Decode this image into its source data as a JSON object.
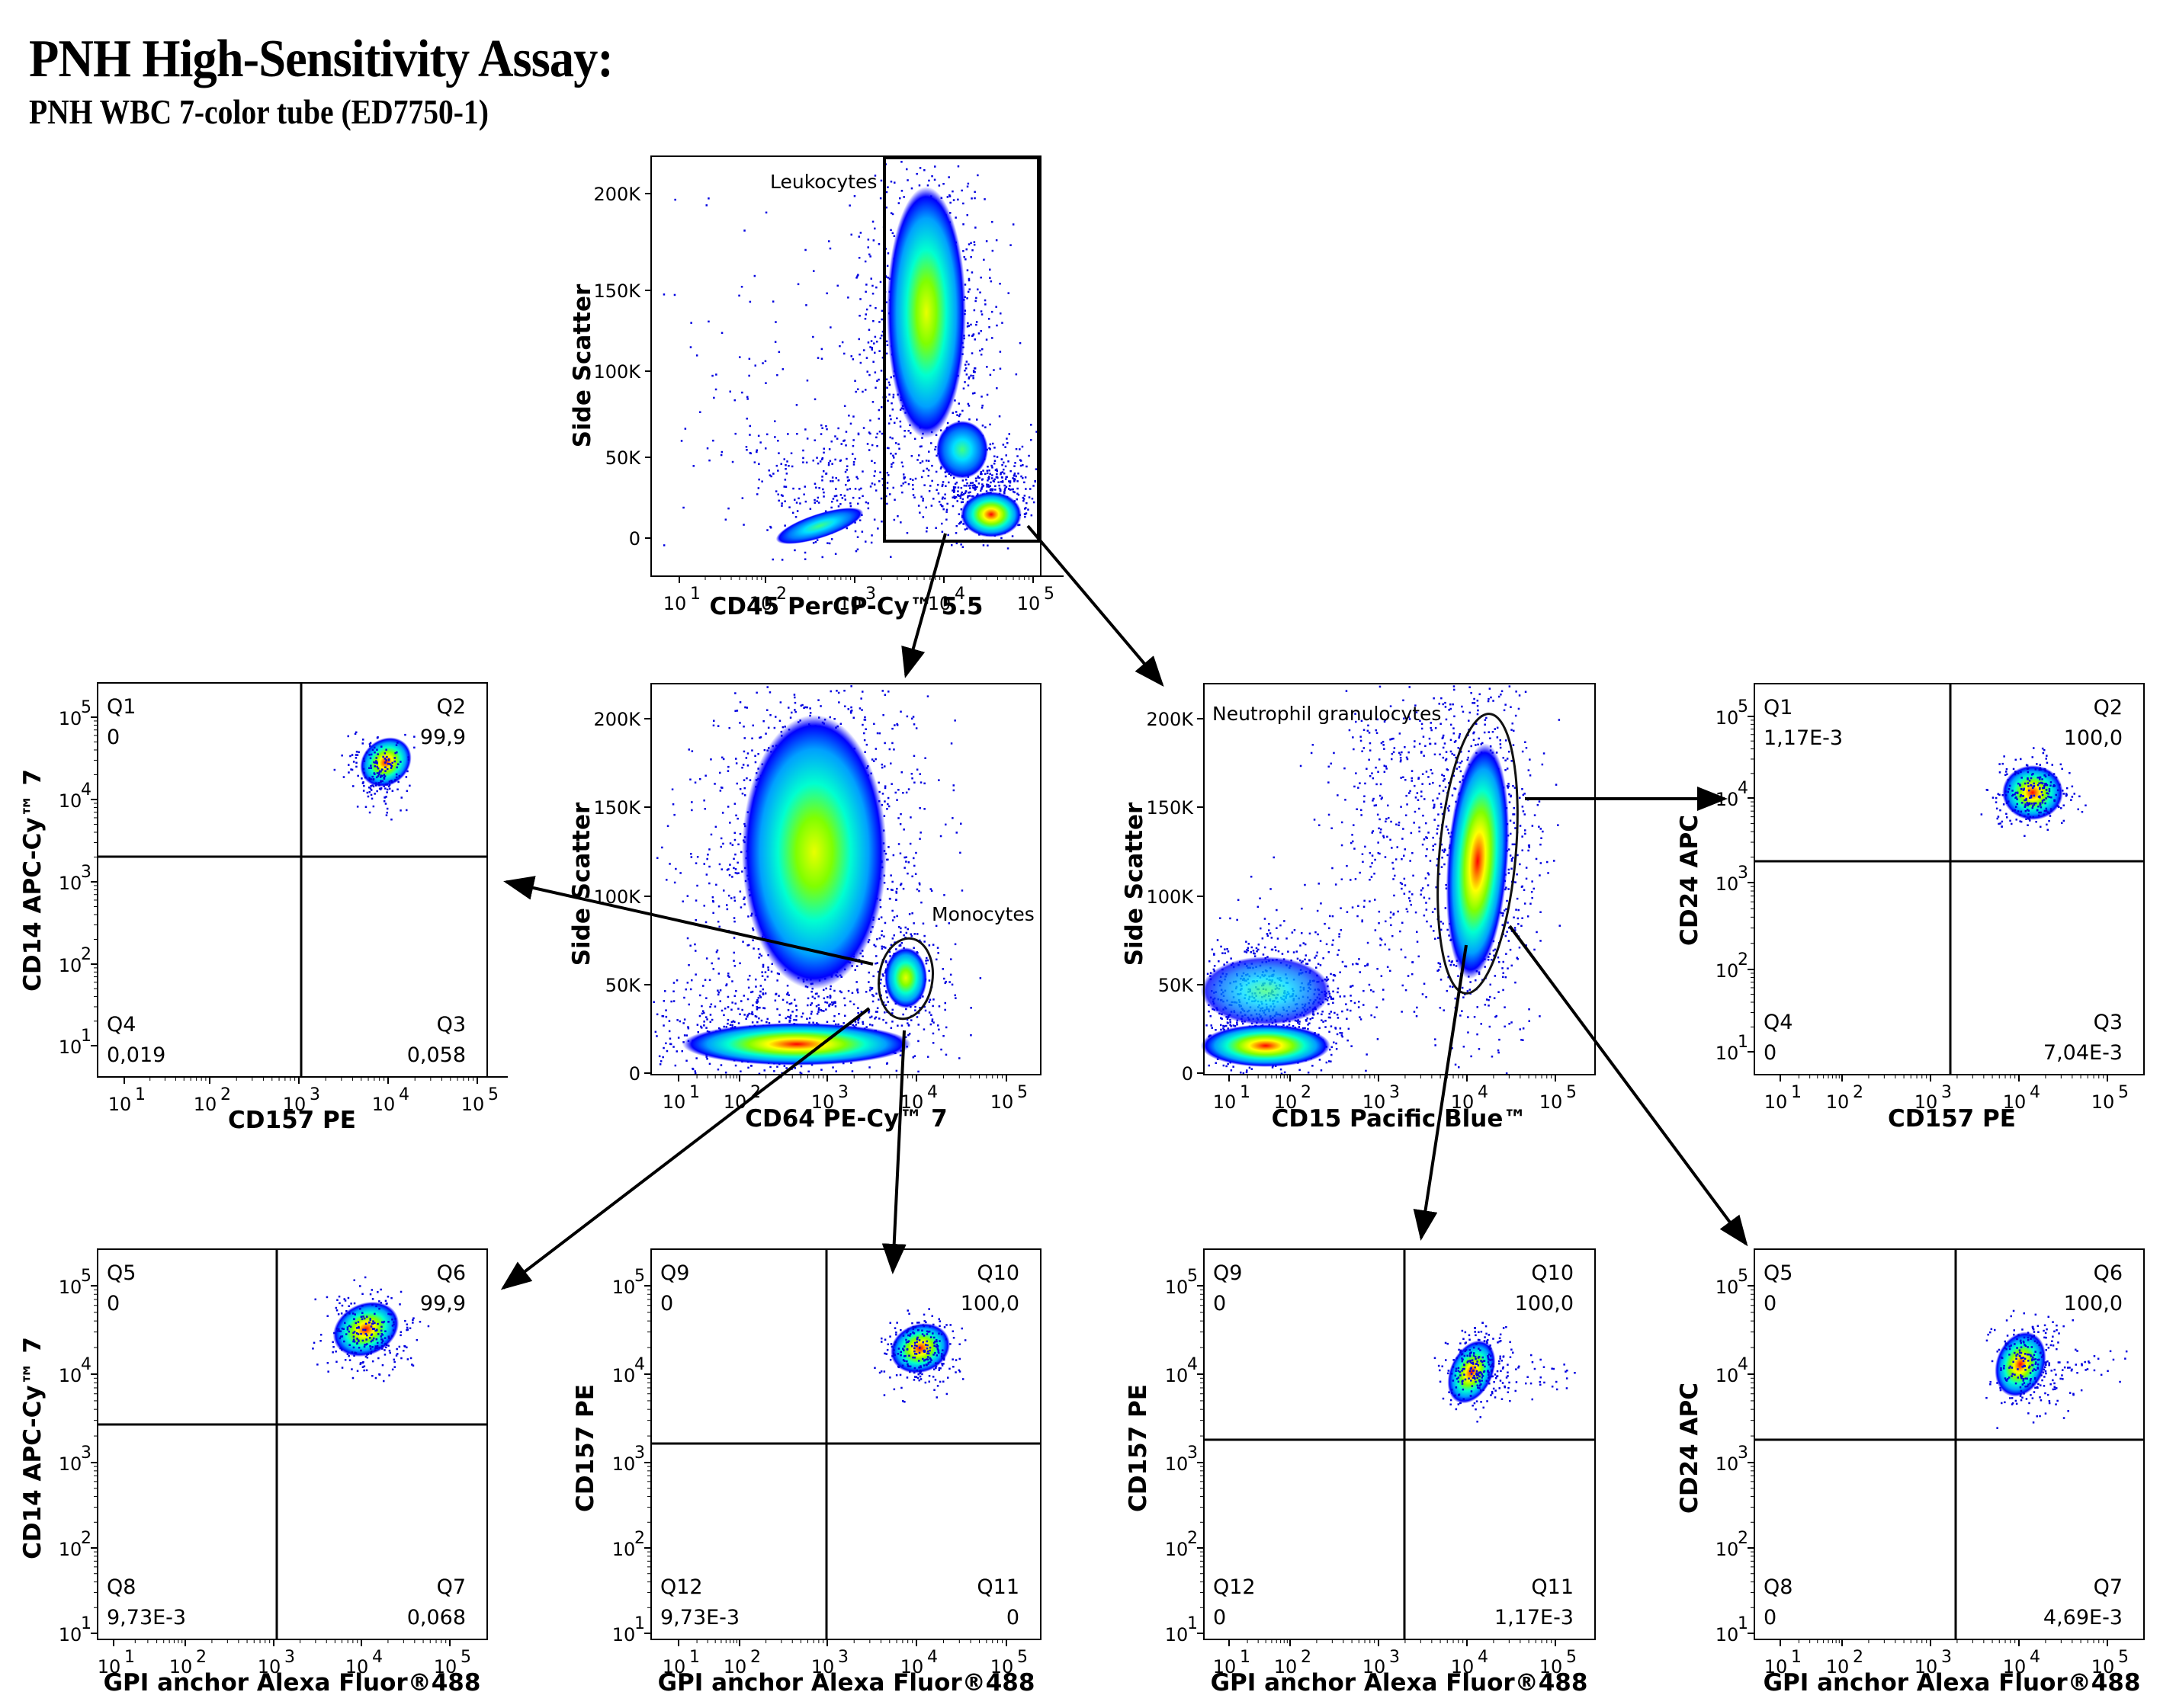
{
  "header": {
    "title": "PNH High-Sensitivity Assay:",
    "subtitle": "PNH WBC 7-color tube (ED7750-1)"
  },
  "colors": {
    "jet": [
      "#0000ff",
      "#00a0ff",
      "#00ffd0",
      "#80ff00",
      "#ffff00",
      "#ff8000",
      "#ff0000"
    ],
    "sparse_dot": "#0000e0",
    "gate_line": "#000000"
  },
  "chart_data": [
    {
      "id": "leukocytes",
      "type": "scatter",
      "title": "",
      "xlabel": "CD45 PerCP-Cy™ 5.5",
      "ylabel": "Side Scatter",
      "x_scale": "log",
      "y_scale": "linear",
      "x_ticks": [
        "10^1",
        "10^2",
        "10^3",
        "10^4",
        "10^5"
      ],
      "y_ticks": [
        "0",
        "50K",
        "100K",
        "150K",
        "200K"
      ],
      "ylim": [
        0,
        220000
      ],
      "gates": [
        {
          "name": "Leukocytes",
          "shape": "rectangle",
          "x_range": [
            3500,
            200000
          ],
          "y_range": [
            0,
            218000
          ]
        }
      ],
      "populations": [
        {
          "name": "granulocytes",
          "x_center": 15000,
          "y_center": 130000,
          "density": "high"
        },
        {
          "name": "monocytes",
          "x_center": 30000,
          "y_center": 52000,
          "density": "medium"
        },
        {
          "name": "lymphocytes",
          "x_center": 70000,
          "y_center": 12000,
          "density": "very high"
        },
        {
          "name": "debris/RBC",
          "x_center": 700,
          "y_center": 10000,
          "density": "medium"
        }
      ]
    },
    {
      "id": "monocytes-gate",
      "type": "scatter",
      "xlabel": "CD64 PE-Cy™ 7",
      "ylabel": "Side Scatter",
      "x_scale": "log",
      "y_scale": "linear",
      "x_ticks": [
        "10^1",
        "10^2",
        "10^3",
        "10^4",
        "10^5"
      ],
      "y_ticks": [
        "0",
        "50K",
        "100K",
        "150K",
        "200K"
      ],
      "ylim": [
        0,
        220000
      ],
      "gates": [
        {
          "name": "Monocytes",
          "shape": "ellipse",
          "x_center": 6500,
          "y_center": 52000
        }
      ],
      "populations": [
        {
          "name": "granulocytes",
          "x_center": 700,
          "y_center": 130000,
          "density": "high"
        },
        {
          "name": "lymphocytes",
          "x_center": 1000,
          "y_center": 12000,
          "density": "high"
        },
        {
          "name": "monocytes",
          "x_center": 6500,
          "y_center": 52000,
          "density": "medium"
        }
      ]
    },
    {
      "id": "neutrophil-gate",
      "type": "scatter",
      "xlabel": "CD15 Pacific Blue™",
      "ylabel": "Side Scatter",
      "x_scale": "log",
      "y_scale": "linear",
      "x_ticks": [
        "10^1",
        "10^2",
        "10^3",
        "10^4",
        "10^5"
      ],
      "y_ticks": [
        "0",
        "50K",
        "100K",
        "150K",
        "200K"
      ],
      "ylim": [
        0,
        220000
      ],
      "gates": [
        {
          "name": "Neutrophil granulocytes",
          "shape": "ellipse",
          "x_center": 11000,
          "y_center": 130000
        }
      ],
      "populations": [
        {
          "name": "neutrophils",
          "x_center": 11000,
          "y_center": 125000,
          "density": "very high"
        },
        {
          "name": "lymphocytes",
          "x_center": 30,
          "y_center": 12000,
          "density": "high"
        },
        {
          "name": "monocytes",
          "x_center": 40,
          "y_center": 50000,
          "density": "medium"
        }
      ]
    },
    {
      "id": "mono-cd14-cd157",
      "type": "scatter",
      "xlabel": "CD157 PE",
      "ylabel": "CD14 APC-Cy™ 7",
      "x_scale": "log",
      "y_scale": "log",
      "x_ticks": [
        "10^1",
        "10^2",
        "10^3",
        "10^4",
        "10^5"
      ],
      "y_ticks": [
        "10^1",
        "10^2",
        "10^3",
        "10^4",
        "10^5"
      ],
      "quadrants": [
        {
          "name": "Q1",
          "value": "0",
          "pos": "top-left"
        },
        {
          "name": "Q2",
          "value": "99,9",
          "pos": "top-right"
        },
        {
          "name": "Q3",
          "value": "0,058",
          "pos": "bottom-right"
        },
        {
          "name": "Q4",
          "value": "0,019",
          "pos": "bottom-left"
        }
      ],
      "cluster": {
        "x_center": 18000,
        "y_center": 35000
      }
    },
    {
      "id": "neut-cd24-cd157",
      "type": "scatter",
      "xlabel": "CD157 PE",
      "ylabel": "CD24 APC",
      "x_scale": "log",
      "y_scale": "log",
      "x_ticks": [
        "10^1",
        "10^2",
        "10^3",
        "10^4",
        "10^5"
      ],
      "y_ticks": [
        "10^1",
        "10^2",
        "10^3",
        "10^4",
        "10^5"
      ],
      "quadrants": [
        {
          "name": "Q1",
          "value": "1,17E-3",
          "pos": "top-left"
        },
        {
          "name": "Q2",
          "value": "100,0",
          "pos": "top-right"
        },
        {
          "name": "Q3",
          "value": "7,04E-3",
          "pos": "bottom-right"
        },
        {
          "name": "Q4",
          "value": "0",
          "pos": "bottom-left"
        }
      ],
      "cluster": {
        "x_center": 14000,
        "y_center": 17000
      }
    },
    {
      "id": "mono-cd14-gpi",
      "type": "scatter",
      "xlabel": "GPI anchor Alexa Fluor®488",
      "ylabel": "CD14 APC-Cy™ 7",
      "x_scale": "log",
      "y_scale": "log",
      "x_ticks": [
        "10^1",
        "10^2",
        "10^3",
        "10^4",
        "10^5"
      ],
      "y_ticks": [
        "10^1",
        "10^2",
        "10^3",
        "10^4",
        "10^5"
      ],
      "quadrants": [
        {
          "name": "Q5",
          "value": "0",
          "pos": "top-left"
        },
        {
          "name": "Q6",
          "value": "99,9",
          "pos": "top-right"
        },
        {
          "name": "Q7",
          "value": "0,068",
          "pos": "bottom-right"
        },
        {
          "name": "Q8",
          "value": "9,73E-3",
          "pos": "bottom-left"
        }
      ],
      "cluster": {
        "x_center": 10000,
        "y_center": 35000
      }
    },
    {
      "id": "mono-cd157-gpi",
      "type": "scatter",
      "xlabel": "GPI anchor Alexa Fluor®488",
      "ylabel": "CD157 PE",
      "x_scale": "log",
      "y_scale": "log",
      "x_ticks": [
        "10^1",
        "10^2",
        "10^3",
        "10^4",
        "10^5"
      ],
      "y_ticks": [
        "10^1",
        "10^2",
        "10^3",
        "10^4",
        "10^5"
      ],
      "quadrants": [
        {
          "name": "Q9",
          "value": "0",
          "pos": "top-left"
        },
        {
          "name": "Q10",
          "value": "100,0",
          "pos": "top-right"
        },
        {
          "name": "Q11",
          "value": "0",
          "pos": "bottom-right"
        },
        {
          "name": "Q12",
          "value": "9,73E-3",
          "pos": "bottom-left"
        }
      ],
      "cluster": {
        "x_center": 10000,
        "y_center": 20000
      }
    },
    {
      "id": "neut-cd157-gpi",
      "type": "scatter",
      "xlabel": "GPI anchor Alexa Fluor®488",
      "ylabel": "CD157 PE",
      "x_scale": "log",
      "y_scale": "log",
      "x_ticks": [
        "10^1",
        "10^2",
        "10^3",
        "10^4",
        "10^5"
      ],
      "y_ticks": [
        "10^1",
        "10^2",
        "10^3",
        "10^4",
        "10^5"
      ],
      "quadrants": [
        {
          "name": "Q9",
          "value": "0",
          "pos": "top-left"
        },
        {
          "name": "Q10",
          "value": "100,0",
          "pos": "top-right"
        },
        {
          "name": "Q11",
          "value": "1,17E-3",
          "pos": "bottom-right"
        },
        {
          "name": "Q12",
          "value": "0",
          "pos": "bottom-left"
        }
      ],
      "cluster": {
        "x_center": 8000,
        "y_center": 14000
      }
    },
    {
      "id": "neut-cd24-gpi",
      "type": "scatter",
      "xlabel": "GPI anchor Alexa Fluor®488",
      "ylabel": "CD24 APC",
      "x_scale": "log",
      "y_scale": "log",
      "x_ticks": [
        "10^1",
        "10^2",
        "10^3",
        "10^4",
        "10^5"
      ],
      "y_ticks": [
        "10^1",
        "10^2",
        "10^3",
        "10^4",
        "10^5"
      ],
      "quadrants": [
        {
          "name": "Q5",
          "value": "0",
          "pos": "top-left"
        },
        {
          "name": "Q6",
          "value": "100,0",
          "pos": "top-right"
        },
        {
          "name": "Q7",
          "value": "4,69E-3",
          "pos": "bottom-right"
        },
        {
          "name": "Q8",
          "value": "0",
          "pos": "bottom-left"
        }
      ],
      "cluster": {
        "x_center": 9000,
        "y_center": 16000
      }
    }
  ],
  "labels": {
    "log_base": "10",
    "exponents": [
      "1",
      "2",
      "3",
      "4",
      "5"
    ],
    "linear_ticks": [
      "0",
      "50K",
      "100K",
      "150K",
      "200K"
    ],
    "side_scatter": "Side Scatter",
    "cd45": "CD45 PerCP-Cy™ 5.5",
    "cd64": "CD64 PE-Cy™ 7",
    "cd15": "CD15 Pacific Blue™",
    "cd157": "CD157 PE",
    "cd14": "CD14 APC-Cy™ 7",
    "cd24": "CD24 APC",
    "gpi": "GPI anchor Alexa Fluor®488",
    "gate_leukocytes": "Leukocytes",
    "gate_monocytes": "Monocytes",
    "gate_neutrophils": "Neutrophil granulocytes"
  },
  "quad": {
    "A": {
      "tl": [
        "Q1",
        "0"
      ],
      "tr": [
        "Q2",
        "99,9"
      ],
      "bl": [
        "Q4",
        "0,019"
      ],
      "br": [
        "Q3",
        "0,058"
      ]
    },
    "D": {
      "tl": [
        "Q1",
        "1,17E-3"
      ],
      "tr": [
        "Q2",
        "100,0"
      ],
      "bl": [
        "Q4",
        "0"
      ],
      "br": [
        "Q3",
        "7,04E-3"
      ]
    },
    "E": {
      "tl": [
        "Q5",
        "0"
      ],
      "tr": [
        "Q6",
        "99,9"
      ],
      "bl": [
        "Q8",
        "9,73E-3"
      ],
      "br": [
        "Q7",
        "0,068"
      ]
    },
    "F": {
      "tl": [
        "Q9",
        "0"
      ],
      "tr": [
        "Q10",
        "100,0"
      ],
      "bl": [
        "Q12",
        "9,73E-3"
      ],
      "br": [
        "Q11",
        "0"
      ]
    },
    "G": {
      "tl": [
        "Q9",
        "0"
      ],
      "tr": [
        "Q10",
        "100,0"
      ],
      "bl": [
        "Q12",
        "0"
      ],
      "br": [
        "Q11",
        "1,17E-3"
      ]
    },
    "H": {
      "tl": [
        "Q5",
        "0"
      ],
      "tr": [
        "Q6",
        "100,0"
      ],
      "bl": [
        "Q8",
        "0"
      ],
      "br": [
        "Q7",
        "4,69E-3"
      ]
    }
  }
}
